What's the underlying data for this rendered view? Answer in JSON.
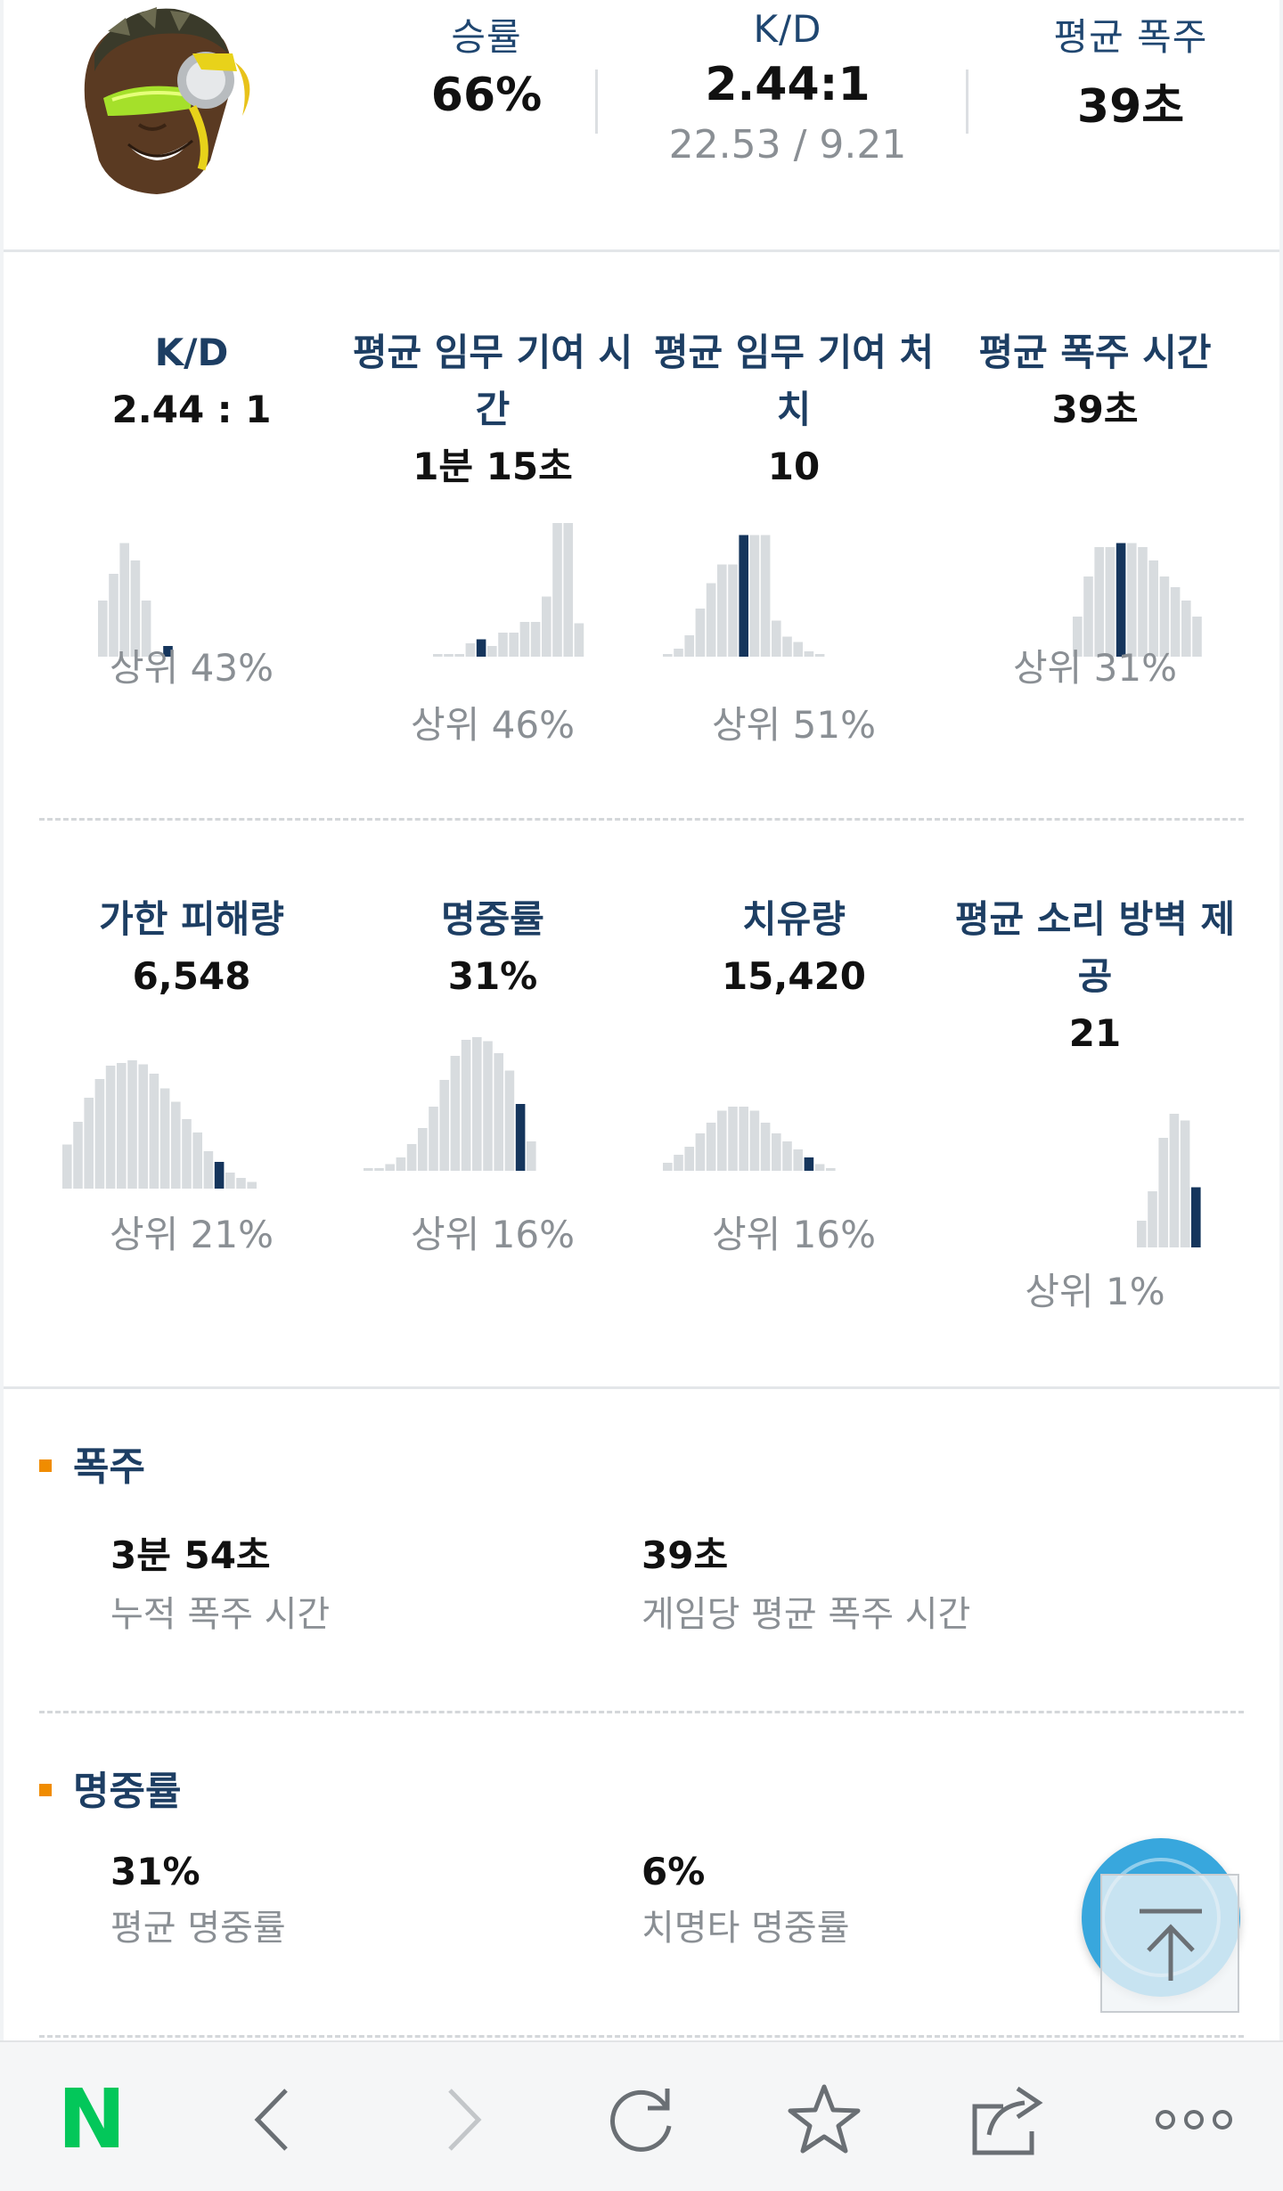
{
  "profile": {
    "avatar_icon": "lucio-hero-portrait",
    "summary": [
      {
        "label": "승률",
        "value": "66%"
      },
      {
        "label": "K/D",
        "value": "2.44:1",
        "sub": "22.53 / 9.21"
      },
      {
        "label": "평균 폭주",
        "value": "39초"
      }
    ]
  },
  "stats_row1": [
    {
      "title_lines": [
        "K/D",
        ""
      ],
      "value": "2.44 : 1",
      "percentile": "상위 43%",
      "histogram": [
        0.42,
        0.62,
        0.85,
        0.72,
        0.42,
        0.0,
        0.08
      ],
      "highlight": 6
    },
    {
      "title_lines": [
        "평균 임무 기여 시",
        "간"
      ],
      "value": "1분 15초",
      "percentile": "상위 46%",
      "histogram": [
        0.02,
        0.02,
        0.02,
        0.1,
        0.13,
        0.08,
        0.18,
        0.18,
        0.26,
        0.26,
        0.45,
        1.0,
        1.0,
        0.25
      ],
      "highlight": 4
    },
    {
      "title_lines": [
        "평균 임무 기여 처",
        "치"
      ],
      "value": "10",
      "percentile": "상위 51%",
      "histogram": [
        0.02,
        0.06,
        0.16,
        0.36,
        0.55,
        0.69,
        0.69,
        0.91,
        0.91,
        0.91,
        0.27,
        0.15,
        0.11,
        0.04,
        0.02
      ],
      "highlight": 7
    },
    {
      "title_lines": [
        "평균 폭주 시간",
        ""
      ],
      "value": "39초",
      "percentile": "상위 31%",
      "histogram": [
        0.3,
        0.6,
        0.82,
        0.82,
        0.85,
        0.85,
        0.82,
        0.72,
        0.6,
        0.52,
        0.42,
        0.3
      ],
      "highlight": 4
    }
  ],
  "stats_row2": [
    {
      "title_lines": [
        "가한 피해량",
        ""
      ],
      "value": "6,548",
      "percentile": "상위 21%",
      "histogram": [
        0.33,
        0.5,
        0.68,
        0.82,
        0.92,
        0.94,
        0.96,
        0.93,
        0.86,
        0.75,
        0.65,
        0.52,
        0.42,
        0.28,
        0.2,
        0.12,
        0.08,
        0.05
      ],
      "highlight": 14
    },
    {
      "title_lines": [
        "명중률",
        ""
      ],
      "value": "31%",
      "percentile": "상위 16%",
      "histogram": [
        0.02,
        0.02,
        0.05,
        0.1,
        0.2,
        0.32,
        0.48,
        0.68,
        0.86,
        0.98,
        1.0,
        0.97,
        0.88,
        0.75,
        0.5,
        0.22
      ],
      "highlight": 14
    },
    {
      "title_lines": [
        "치유량",
        ""
      ],
      "value": "15,420",
      "percentile": "상위 16%",
      "histogram": [
        0.06,
        0.12,
        0.18,
        0.28,
        0.36,
        0.45,
        0.48,
        0.48,
        0.45,
        0.36,
        0.28,
        0.22,
        0.16,
        0.1,
        0.05,
        0.02
      ],
      "highlight": 13
    },
    {
      "title_lines": [
        "평균 소리 방벽 제",
        "공"
      ],
      "value": "21",
      "percentile": "상위 1%",
      "histogram": [
        0.2,
        0.42,
        0.82,
        1.0,
        0.95,
        0.45
      ],
      "highlight": 5
    }
  ],
  "sections": [
    {
      "title": "폭주",
      "items": [
        {
          "value": "3분 54초",
          "label": "누적 폭주 시간"
        },
        {
          "value": "39초",
          "label": "게임당 평균 폭주 시간"
        }
      ]
    },
    {
      "title": "명중률",
      "items": [
        {
          "value": "31%",
          "label": "평균 명중률"
        },
        {
          "value": "6%",
          "label": "치명타 명중률"
        }
      ]
    }
  ],
  "colors": {
    "title": "#1d3e63",
    "bar": "#d8dcdf",
    "bar_highlight": "#15355c",
    "accent_orange": "#f08c00",
    "fab": "#38a7dd",
    "naver_green": "#03c75a"
  },
  "navbar": {
    "icons": [
      "naver-logo-icon",
      "back-arrow-icon",
      "forward-arrow-icon",
      "refresh-icon",
      "bookmark-star-icon",
      "share-icon",
      "more-icon"
    ],
    "logo_text": "N"
  }
}
